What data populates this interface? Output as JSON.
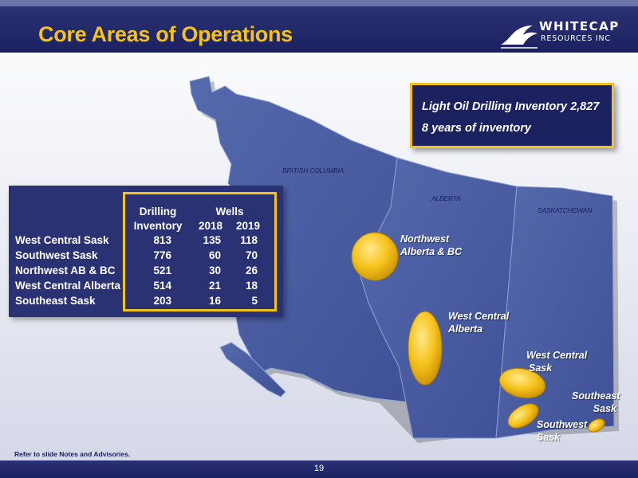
{
  "header": {
    "title": "Core Areas of Operations",
    "logo": {
      "line1": "WHITECAP",
      "line2": "RESOURCES INC"
    }
  },
  "inventory_box": {
    "line1": "Light Oil Drilling Inventory 2,827",
    "line2": "8 years of inventory"
  },
  "provinces": [
    "BRITISH COLUMBIA",
    "ALBERTA",
    "SASKATCHEWAN"
  ],
  "table": {
    "header_top": [
      "Drilling",
      "Wells"
    ],
    "header_bottom": [
      "Inventory",
      "2018",
      "2019"
    ],
    "rows": [
      {
        "area": "West Central Sask",
        "inventory": "813",
        "wells_2018": "135",
        "wells_2019": "118"
      },
      {
        "area": "Southwest Sask",
        "inventory": "776",
        "wells_2018": "60",
        "wells_2019": "70"
      },
      {
        "area": "Northwest AB & BC",
        "inventory": "521",
        "wells_2018": "30",
        "wells_2019": "26"
      },
      {
        "area": "West Central Alberta",
        "inventory": "514",
        "wells_2018": "21",
        "wells_2019": "18"
      },
      {
        "area": "Southeast Sask",
        "inventory": "203",
        "wells_2018": "16",
        "wells_2019": "5"
      }
    ]
  },
  "region_labels": {
    "northwest": [
      "Northwest",
      "Alberta & BC"
    ],
    "west_central_alberta": [
      "West Central",
      "Alberta"
    ],
    "west_central_sask": [
      "West Central",
      "Sask"
    ],
    "southeast_sask": [
      "Southeast",
      "Sask"
    ],
    "southwest_sask": [
      "Southwest",
      "Sask"
    ]
  },
  "colors": {
    "navy": "#1c2160",
    "header_blue": "#2b3274",
    "gold": "#f5c21b",
    "map_blue": "#4a5ea3"
  },
  "footnote": "Refer to slide Notes and Advisories.",
  "page_number": "19"
}
